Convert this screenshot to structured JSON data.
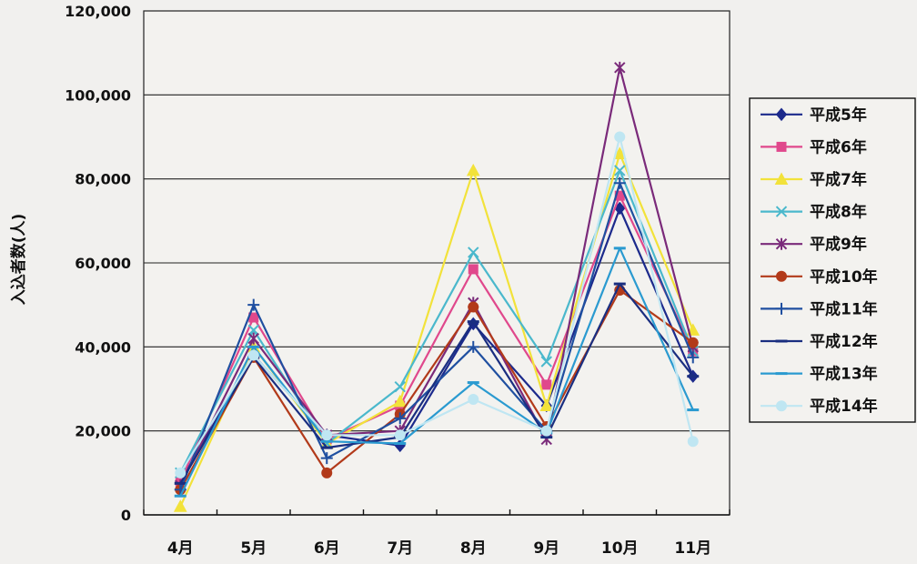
{
  "chart_data": {
    "type": "line",
    "title": "",
    "xlabel": "",
    "ylabel": "入込者数(人)",
    "ylim": [
      0,
      120000
    ],
    "yticks": [
      0,
      20000,
      40000,
      60000,
      80000,
      100000,
      120000
    ],
    "ytick_labels": [
      "0",
      "20,000",
      "40,000",
      "60,000",
      "80,000",
      "100,000",
      "120,000"
    ],
    "grid": "horizontal",
    "legend_position": "right",
    "categories": [
      "4月",
      "5月",
      "6月",
      "7月",
      "8月",
      "9月",
      "10月",
      "11月"
    ],
    "series": [
      {
        "name": "平成5年",
        "color": "#1c2a8c",
        "marker": "diamond",
        "values": [
          8000,
          38000,
          19000,
          16500,
          45500,
          26000,
          73000,
          33000
        ]
      },
      {
        "name": "平成6年",
        "color": "#e0488c",
        "marker": "square",
        "values": [
          8000,
          47000,
          18000,
          26000,
          58500,
          31000,
          76000,
          39000
        ]
      },
      {
        "name": "平成7年",
        "color": "#f2e23a",
        "marker": "triangle",
        "values": [
          2000,
          40000,
          17000,
          27000,
          82000,
          26000,
          86000,
          44000
        ]
      },
      {
        "name": "平成8年",
        "color": "#4ab8cc",
        "marker": "x",
        "values": [
          10000,
          44000,
          17000,
          30500,
          62500,
          36500,
          82000,
          39000
        ]
      },
      {
        "name": "平成9年",
        "color": "#7a2a7a",
        "marker": "star",
        "values": [
          7000,
          42000,
          19000,
          20000,
          50500,
          18000,
          106500,
          40000
        ]
      },
      {
        "name": "平成10年",
        "color": "#b23a1a",
        "marker": "circle",
        "values": [
          6000,
          37500,
          10000,
          24000,
          49500,
          21000,
          53500,
          41000
        ]
      },
      {
        "name": "平成11年",
        "color": "#1f4fa0",
        "marker": "plus",
        "values": [
          6000,
          50000,
          13500,
          23000,
          40000,
          20000,
          79000,
          37500
        ]
      },
      {
        "name": "平成12年",
        "color": "#1a2e80",
        "marker": "dash",
        "values": [
          7500,
          37500,
          16000,
          18500,
          46000,
          18500,
          55000,
          33000
        ]
      },
      {
        "name": "平成13年",
        "color": "#2a9ad0",
        "marker": "dash",
        "values": [
          4500,
          40000,
          17500,
          17000,
          31500,
          19500,
          63500,
          25000
        ]
      },
      {
        "name": "平成14年",
        "color": "#bfe6f2",
        "marker": "circle",
        "values": [
          10000,
          38000,
          19000,
          19000,
          27500,
          20000,
          90000,
          17500
        ]
      }
    ]
  }
}
